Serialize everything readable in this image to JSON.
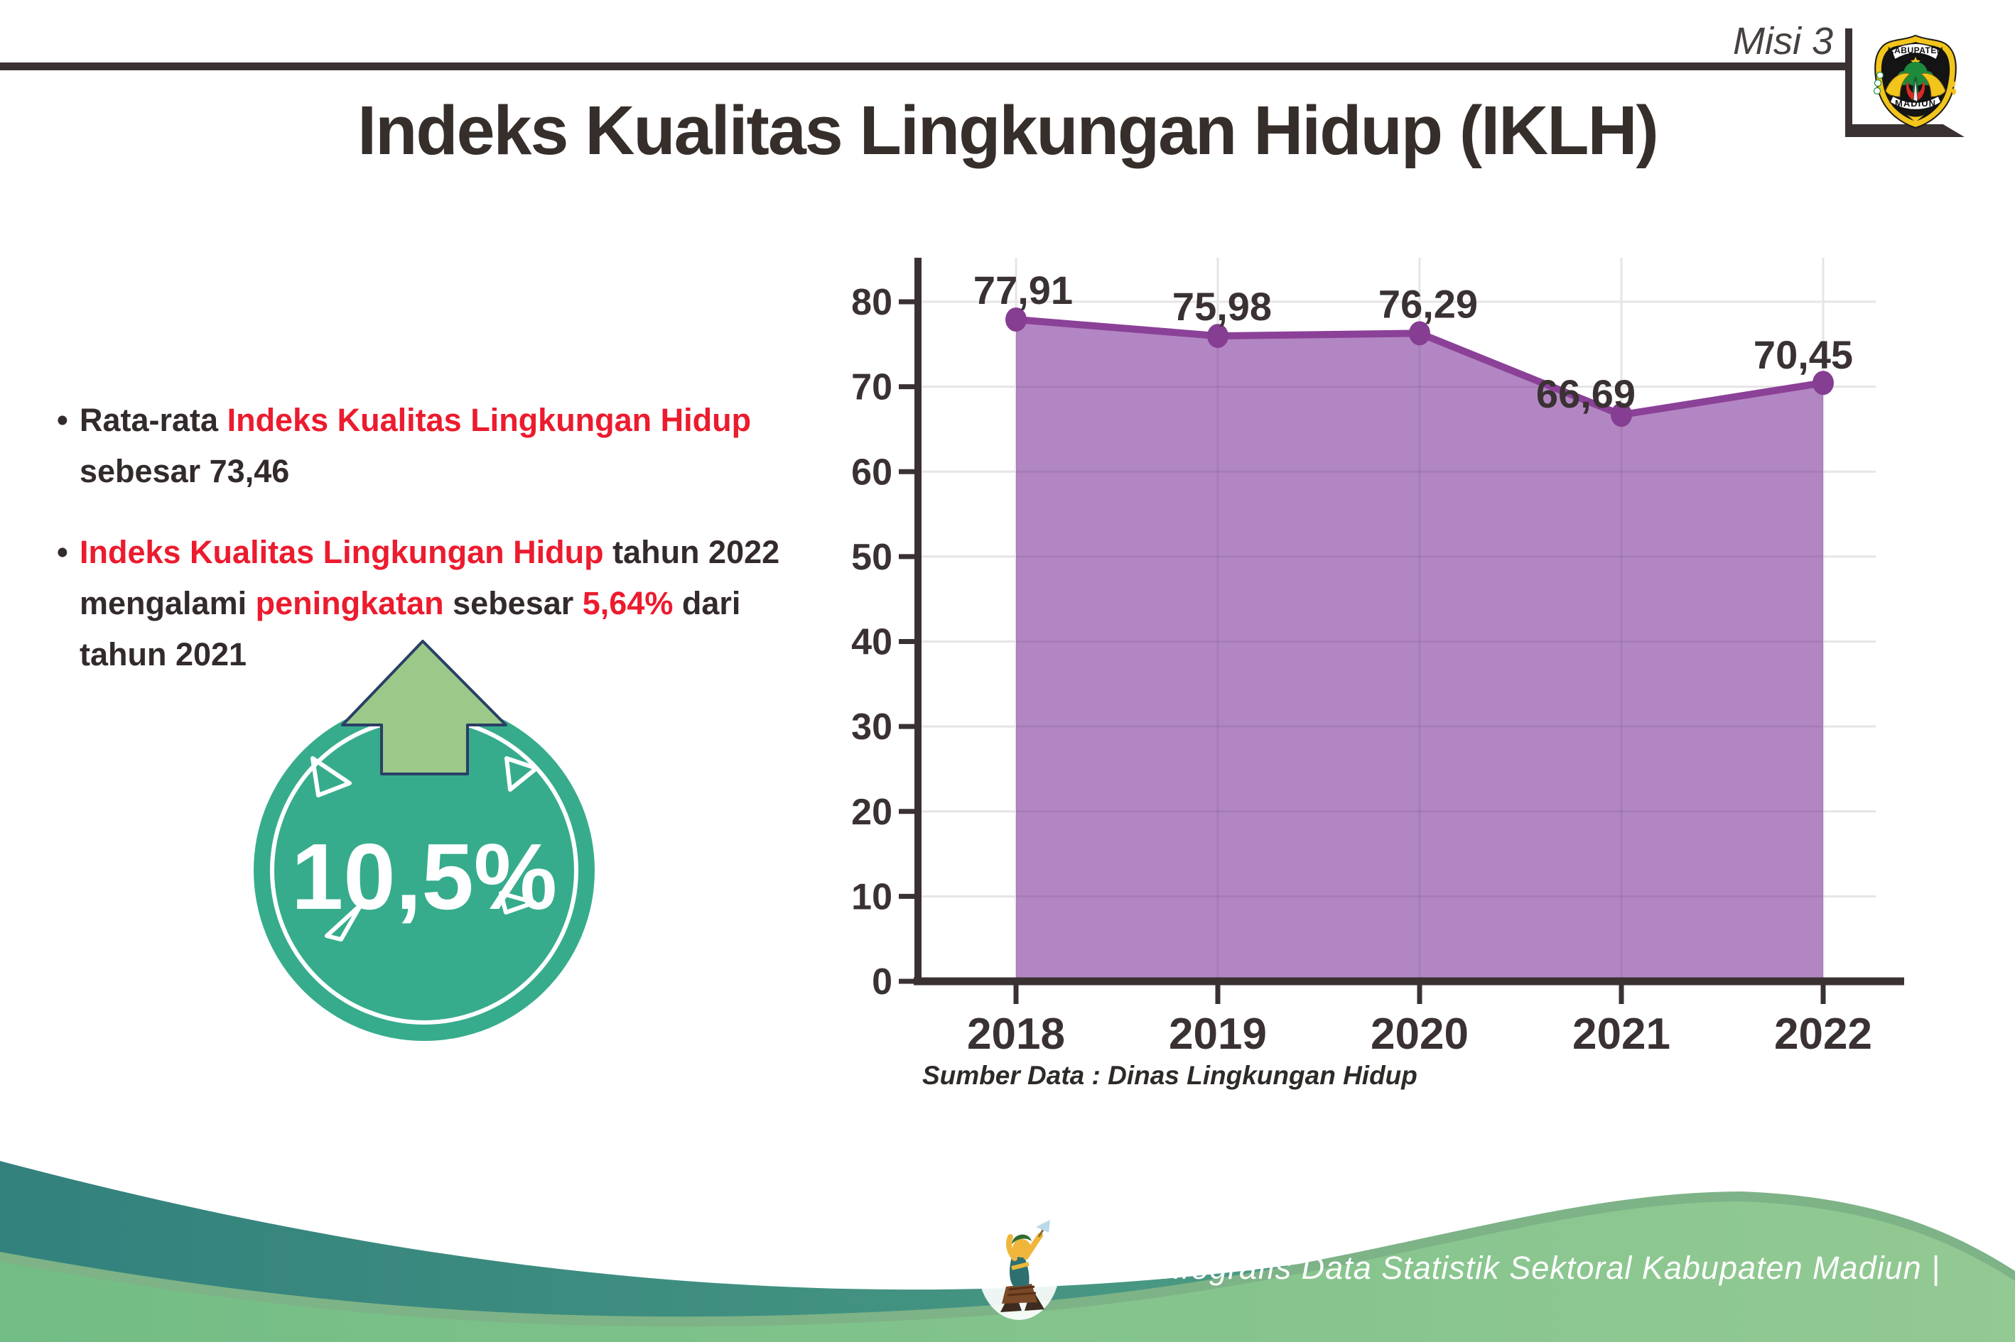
{
  "header": {
    "misi_label": "Misi 3",
    "logo": {
      "top_text": "KABUPATEN",
      "bottom_text": "MADIUN"
    }
  },
  "title": "Indeks Kualitas Lingkungan Hidup (IKLH)",
  "bullets": {
    "bullet_glyph": "•",
    "b1": {
      "s1": "Rata-rata ",
      "s2": "Indeks Kualitas Lingkungan Hidup",
      "line2": "sebesar 73,46"
    },
    "b2": {
      "s1": "Indeks Kualitas Lingkungan Hidup",
      "s2": " tahun 2022",
      "l2a": "mengalami ",
      "l2b": "peningkatan",
      "l2c": " sebesar ",
      "l2d": "5,64%",
      "l2e": " dari",
      "line3": "tahun 2021"
    }
  },
  "badge": {
    "value": "10,5%"
  },
  "chart_data": {
    "type": "area",
    "title": "Indeks Kualitas Lingkungan Hidup (IKLH)",
    "categories": [
      "2018",
      "2019",
      "2020",
      "2021",
      "2022"
    ],
    "values": [
      77.91,
      75.98,
      76.29,
      66.69,
      70.45
    ],
    "point_labels": [
      "77,91",
      "75,98",
      "76,29",
      "66,69",
      "70,45"
    ],
    "ylim": [
      0,
      80
    ],
    "ytick_step": 10,
    "grid": true,
    "legend": false,
    "xlabel": "",
    "ylabel": "",
    "fill_color": "#b286c2",
    "line_color": "#8b4198",
    "dot_color": "#853e92",
    "source_note": "Sumber Data : Dinas Lingkungan Hidup"
  },
  "footer": {
    "text": "Media Infografis Data Statistik Sektoral Kabupaten Madiun |"
  },
  "colors": {
    "accent_red": "#ec1b2e",
    "ink": "#3a3132",
    "badge_teal": "#36ac8d",
    "arrow_green": "#9bc989",
    "wave_teal": "#33817d",
    "wave_green": "#8ac48e"
  }
}
